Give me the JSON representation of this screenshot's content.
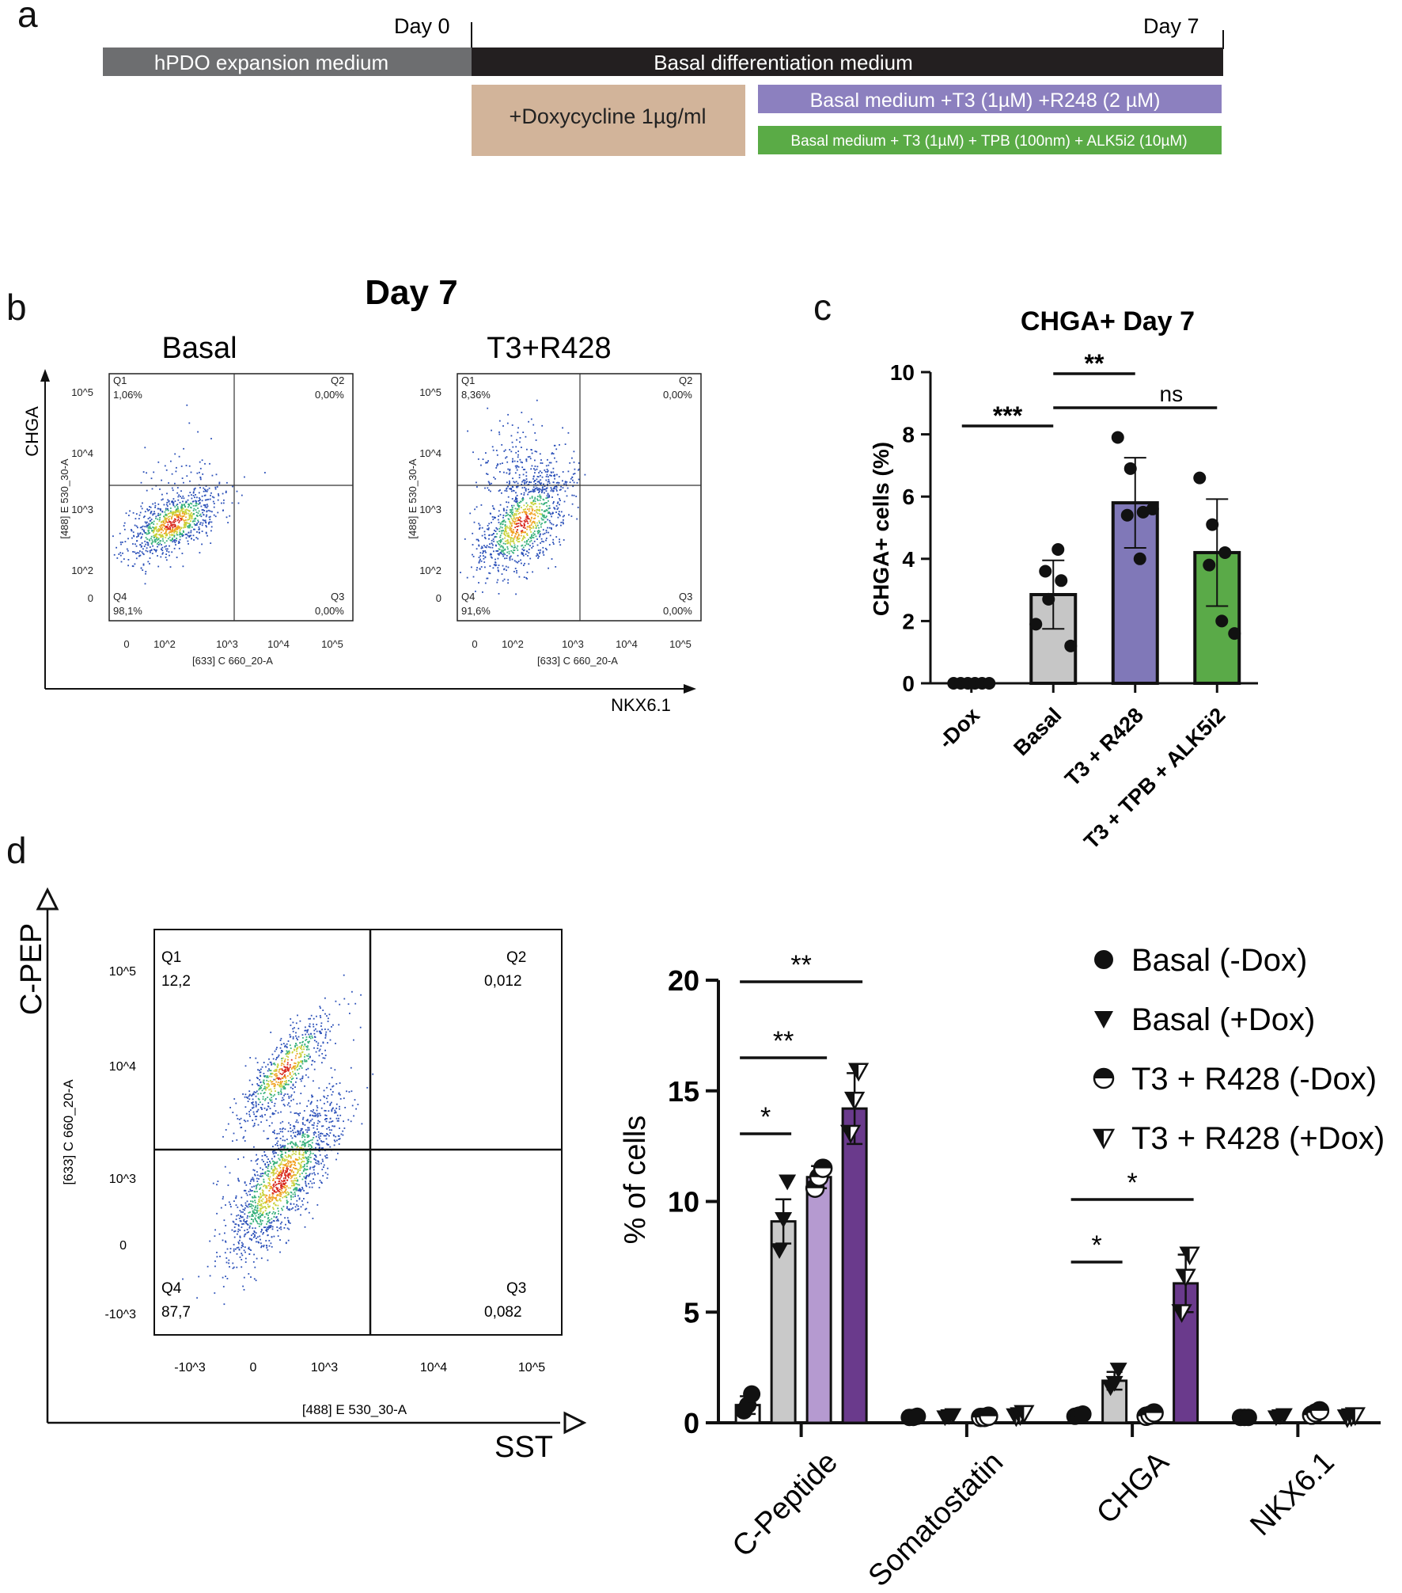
{
  "panel_a": {
    "letter": "a",
    "day_start": "Day 0",
    "day_end": "Day 7",
    "bar_expansion": "hPDO expansion medium",
    "bar_basal": "Basal differentiation medium",
    "bar_doxy": "+Doxycycline 1µg/ml",
    "bar_t3r": "Basal medium +T3 (1µM) +R248 (2 µM)",
    "bar_t3tpb": "Basal medium + T3 (1µM) + TPB (100nm) + ALK5i2 (10µM)",
    "colors": {
      "expansion": "#6d6e70",
      "basal": "#231f20",
      "doxy": "#d2b49a",
      "t3r": "#8c80bf",
      "t3tpb": "#5aab46"
    }
  },
  "panel_b": {
    "letter": "b",
    "title": "Day 7",
    "y_axis": "CHGA",
    "x_axis": "NKX6.1",
    "plots": [
      {
        "label": "Basal",
        "q1_name": "Q1",
        "q1": "1,06%",
        "q2_name": "Q2",
        "q2": "0,00%",
        "q3_name": "Q3",
        "q3": "0,00%",
        "q4_name": "Q4",
        "q4": "98,1%",
        "ylabel": "[488] E 530_30-A",
        "xlabel": "[633] C 660_20-A"
      },
      {
        "label": "T3+R428",
        "q1_name": "Q1",
        "q1": "8,36%",
        "q2_name": "Q2",
        "q2": "0,00%",
        "q3_name": "Q3",
        "q3": "0,00%",
        "q4_name": "Q4",
        "q4": "91,6%",
        "ylabel": "[488] E 530_30-A",
        "xlabel": "[633] C 660_20-A"
      }
    ],
    "y_ticks": [
      "10^5",
      "10^4",
      "10^3",
      "10^2",
      "0"
    ],
    "x_ticks": [
      "0",
      "10^2",
      "10^3",
      "10^4",
      "10^5"
    ]
  },
  "panel_d_flow": {
    "y_axis": "C-PEP",
    "x_axis": "SST",
    "q1_name": "Q1",
    "q1": "12,2",
    "q2_name": "Q2",
    "q2": "0,012",
    "q3_name": "Q3",
    "q3": "0,082",
    "q4_name": "Q4",
    "q4": "87,7",
    "ylabel": "[633] C 660_20-A",
    "xlabel": "[488] E 530_30-A",
    "y_ticks": [
      "10^5",
      "10^4",
      "10^3",
      "0",
      "-10^3"
    ],
    "x_ticks": [
      "-10^3",
      "0",
      "10^3",
      "10^4",
      "10^5"
    ]
  },
  "panel_c_letter": "c",
  "panel_d_letter": "d",
  "chart_data": [
    {
      "type": "bar",
      "title": "CHGA+ Day 7",
      "ylabel": "CHGA+ cells (%)",
      "ylim": [
        0,
        10
      ],
      "yticks": [
        0,
        2,
        4,
        6,
        8,
        10
      ],
      "categories": [
        "-Dox",
        "Basal",
        "T3 + R428",
        "T3 + TPB + ALK5i2"
      ],
      "values": [
        0,
        2.85,
        5.8,
        4.2
      ],
      "errors": [
        0,
        1.1,
        1.45,
        1.72
      ],
      "points": [
        [
          0,
          0,
          0,
          0,
          0,
          0
        ],
        [
          1.9,
          2.7,
          3.3,
          3.6,
          4.3,
          1.2
        ],
        [
          7.9,
          6.9,
          5.5,
          5.4,
          4.0,
          5.6
        ],
        [
          6.6,
          5.1,
          4.2,
          3.8,
          2.0,
          1.6
        ]
      ],
      "colors": [
        "#ffffff",
        "#c6c6c6",
        "#8078b8",
        "#5aaa48"
      ],
      "significance": [
        {
          "from": 0,
          "to": 1,
          "label": "***"
        },
        {
          "from": 1,
          "to": 2,
          "label": "**"
        },
        {
          "from": 1,
          "to": 3,
          "label": "ns"
        }
      ]
    },
    {
      "type": "bar",
      "ylabel": "% of cells",
      "ylim": [
        0,
        20
      ],
      "yticks": [
        0,
        5,
        10,
        15,
        20
      ],
      "categories": [
        "C-Peptide",
        "Somatostatin",
        "CHGA",
        "NKX6.1"
      ],
      "series": [
        {
          "name": "Basal (-Dox)",
          "values": [
            0.8,
            0.12,
            0.2,
            0.1
          ],
          "errors": [
            0.4,
            0,
            0,
            0
          ],
          "color": "#ffffff",
          "marker": "circle"
        },
        {
          "name": "Basal (+Dox)",
          "values": [
            9.1,
            0.15,
            1.9,
            0.15
          ],
          "errors": [
            1.0,
            0,
            0.4,
            0
          ],
          "color": "#c9c9c9",
          "marker": "triangle-down"
        },
        {
          "name": "T3 + R428 (-Dox)",
          "values": [
            11.1,
            0.12,
            0.2,
            0.3
          ],
          "errors": [
            0.5,
            0,
            0,
            0
          ],
          "color": "#b59ad0",
          "marker": "half-circle"
        },
        {
          "name": "T3 + R428 (+Dox)",
          "values": [
            14.2,
            0.2,
            6.3,
            0.2
          ],
          "errors": [
            1.6,
            0,
            1.3,
            0
          ],
          "color": "#6a3a8c",
          "marker": "half-triangle"
        }
      ],
      "points": [
        [
          [
            0.4,
            0.8,
            1.3
          ],
          [
            0.1,
            0.1,
            0.15
          ],
          [
            0.15,
            0.2,
            0.25
          ],
          [
            0.1,
            0.1,
            0.1
          ]
        ],
        [
          [
            7.8,
            9.2,
            10.9
          ],
          [
            0.1,
            0.15,
            0.2
          ],
          [
            1.6,
            1.8,
            2.4
          ],
          [
            0.1,
            0.15,
            0.2
          ]
        ],
        [
          [
            10.6,
            11.1,
            11.5
          ],
          [
            0.1,
            0.1,
            0.15
          ],
          [
            0.15,
            0.2,
            0.3
          ],
          [
            0.2,
            0.3,
            0.4
          ]
        ],
        [
          [
            13.1,
            14.6,
            15.9
          ],
          [
            0.15,
            0.2,
            0.3
          ],
          [
            5.0,
            6.6,
            7.6
          ],
          [
            0.1,
            0.15,
            0.2
          ]
        ]
      ],
      "significance": [
        {
          "label": "*",
          "group": 0,
          "from": 0,
          "to": 1
        },
        {
          "label": "**",
          "group": 0,
          "from": 0,
          "to": 2
        },
        {
          "label": "**",
          "group": 0,
          "from": 0,
          "to": 3
        },
        {
          "label": "*",
          "group": 2,
          "from": 0,
          "to": 1
        },
        {
          "label": "*",
          "group": 2,
          "from": 0,
          "to": 3
        }
      ]
    }
  ]
}
